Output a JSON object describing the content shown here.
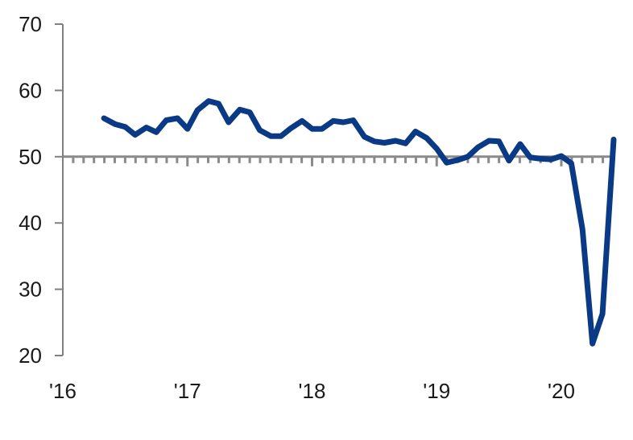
{
  "chart_data": {
    "type": "line",
    "title": "",
    "xlabel": "",
    "ylabel": "",
    "ylim": [
      20,
      70
    ],
    "yticks": [
      20,
      30,
      40,
      50,
      60,
      70
    ],
    "ytick_labels": [
      "20",
      "30",
      "40",
      "50",
      "60",
      "70"
    ],
    "xticks": [
      2016,
      2017,
      2018,
      2019,
      2020
    ],
    "xtick_labels": [
      "'16",
      "'17",
      "'18",
      "'19",
      "'20"
    ],
    "xlim": [
      2016,
      2020.6
    ],
    "reference_line": 50,
    "grid": false,
    "legend": "none",
    "colors": {
      "series": "#0a3a85",
      "axis": "#808080",
      "reference": "#8a8a8a",
      "text": "#1a1a1a"
    },
    "series": [
      {
        "x": [
          2016.33,
          2016.42,
          2016.5,
          2016.58,
          2016.67,
          2016.75,
          2016.83,
          2016.92,
          2017.0,
          2017.08,
          2017.17,
          2017.25,
          2017.33,
          2017.42,
          2017.5,
          2017.58,
          2017.67,
          2017.75,
          2017.83,
          2017.92,
          2018.0,
          2018.08,
          2018.17,
          2018.25,
          2018.33,
          2018.42,
          2018.5,
          2018.58,
          2018.67,
          2018.75,
          2018.83,
          2018.92,
          2019.0,
          2019.08,
          2019.17,
          2019.25,
          2019.33,
          2019.42,
          2019.5,
          2019.58,
          2019.67,
          2019.75,
          2019.83,
          2019.92,
          2020.0,
          2020.08,
          2020.17,
          2020.25,
          2020.33,
          2020.42
        ],
        "values": [
          55.8,
          54.9,
          54.5,
          53.3,
          54.4,
          53.7,
          55.5,
          55.8,
          54.2,
          57.0,
          58.4,
          58.0,
          55.2,
          57.1,
          56.7,
          54.0,
          53.1,
          53.1,
          54.3,
          55.4,
          54.2,
          54.2,
          55.4,
          55.2,
          55.5,
          53.0,
          52.3,
          52.1,
          52.4,
          52.0,
          53.8,
          52.8,
          51.2,
          49.1,
          49.5,
          50.0,
          51.4,
          52.4,
          52.3,
          49.4,
          51.9,
          49.9,
          49.7,
          49.6,
          50.1,
          49.0,
          39.0,
          21.8,
          26.3,
          52.6
        ]
      }
    ]
  }
}
